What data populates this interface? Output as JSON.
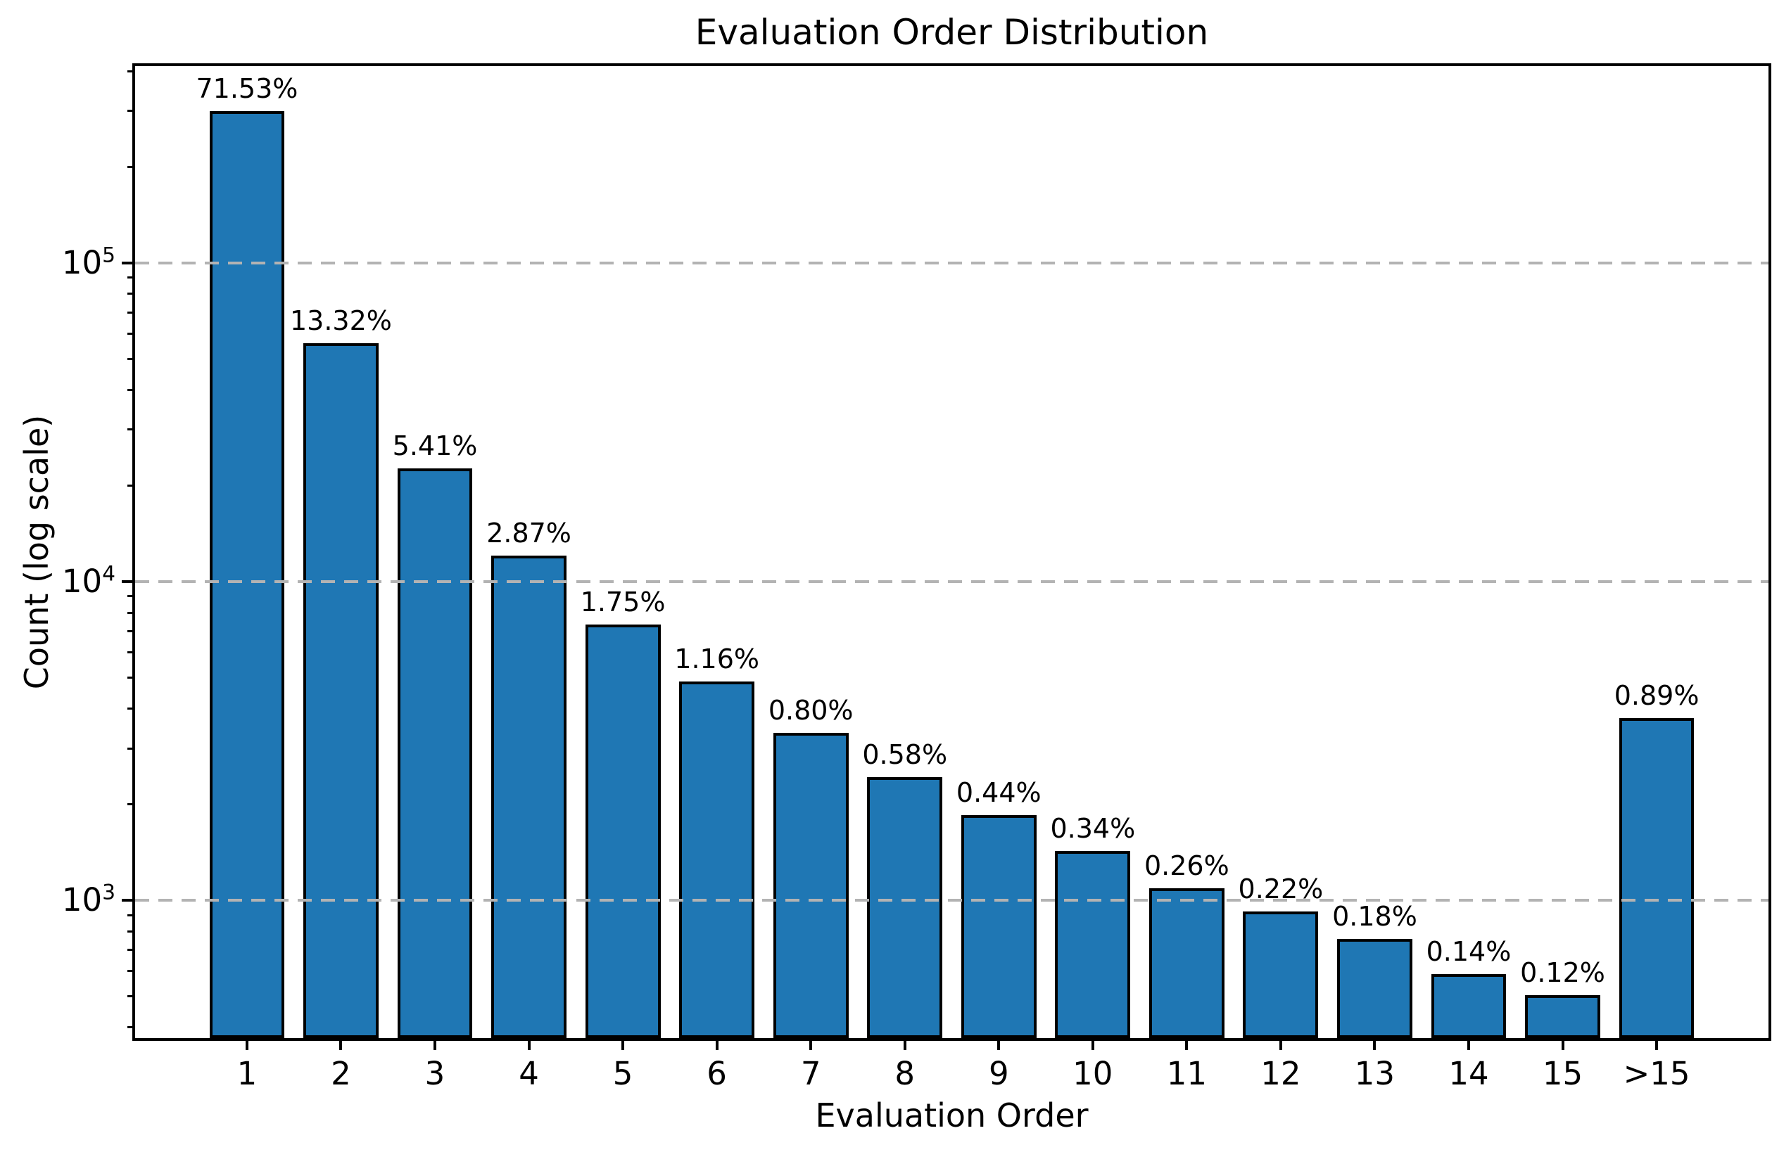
{
  "chart_data": {
    "type": "bar",
    "title": "Evaluation Order Distribution",
    "xlabel": "Evaluation Order",
    "ylabel": "Count (log scale)",
    "categories": [
      "1",
      "2",
      "3",
      "4",
      "5",
      "6",
      "7",
      "8",
      "9",
      "10",
      "11",
      "12",
      "13",
      "14",
      "15",
      ">15"
    ],
    "bar_labels": [
      "71.53%",
      "13.32%",
      "5.41%",
      "2.87%",
      "1.75%",
      "1.16%",
      "0.80%",
      "0.58%",
      "0.44%",
      "0.34%",
      "0.26%",
      "0.22%",
      "0.18%",
      "0.14%",
      "0.12%",
      "0.89%"
    ],
    "values": [
      300426,
      55944,
      22722,
      12054,
      7350,
      4872,
      3360,
      2436,
      1848,
      1428,
      1092,
      924,
      756,
      588,
      504,
      3738
    ],
    "yscale": "log",
    "ylim": [
      370,
      415000
    ],
    "ytick_exponents": [
      3,
      4,
      5
    ],
    "grid": {
      "axis": "y",
      "style": "dashed",
      "position": "above-bars"
    },
    "legend": null,
    "colors": {
      "bar_fill": "#1f77b4",
      "bar_edge": "#000000",
      "gridline": "#b3b3b3",
      "spine": "#000000",
      "text": "#000000",
      "background": "#ffffff"
    }
  }
}
